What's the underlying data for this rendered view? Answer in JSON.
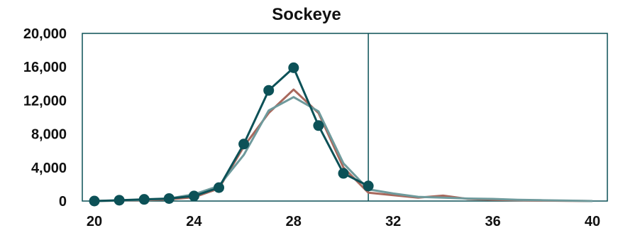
{
  "chart_data": {
    "type": "line",
    "title": "Sockeye",
    "xlabel": "",
    "ylabel": "",
    "xlim": [
      20,
      40
    ],
    "ylim": [
      0,
      20000
    ],
    "x_ticks": [
      "20",
      "24",
      "28",
      "32",
      "36",
      "40"
    ],
    "y_ticks": [
      "20,000",
      "16,000",
      "12,000",
      "8,000",
      "4,000",
      "0"
    ],
    "grid": false,
    "legend": "none",
    "vertical_marker_x": 31,
    "series": [
      {
        "color": "#a8685c",
        "markers": false,
        "points": [
          [
            20,
            0
          ],
          [
            21,
            50
          ],
          [
            22,
            100
          ],
          [
            23,
            200
          ],
          [
            24,
            450
          ],
          [
            25,
            1500
          ],
          [
            26,
            6500
          ],
          [
            27,
            10500
          ],
          [
            28,
            13300
          ],
          [
            29,
            10500
          ],
          [
            30,
            4000
          ],
          [
            31,
            1000
          ],
          [
            32,
            700
          ],
          [
            33,
            400
          ],
          [
            34,
            650
          ],
          [
            35,
            250
          ],
          [
            36,
            150
          ],
          [
            37,
            100
          ],
          [
            38,
            50
          ],
          [
            39,
            20
          ],
          [
            40,
            0
          ]
        ]
      },
      {
        "color": "#6e9a9c",
        "markers": false,
        "points": [
          [
            20,
            0
          ],
          [
            21,
            50
          ],
          [
            22,
            150
          ],
          [
            23,
            300
          ],
          [
            24,
            800
          ],
          [
            25,
            1800
          ],
          [
            26,
            5500
          ],
          [
            27,
            10800
          ],
          [
            28,
            12400
          ],
          [
            29,
            10700
          ],
          [
            30,
            4500
          ],
          [
            31,
            1400
          ],
          [
            32,
            900
          ],
          [
            33,
            500
          ],
          [
            34,
            400
          ],
          [
            35,
            300
          ],
          [
            36,
            250
          ],
          [
            37,
            150
          ],
          [
            38,
            100
          ],
          [
            39,
            50
          ],
          [
            40,
            0
          ]
        ]
      },
      {
        "color": "#0c5157",
        "markers": true,
        "points": [
          [
            20,
            0
          ],
          [
            21,
            100
          ],
          [
            22,
            200
          ],
          [
            23,
            300
          ],
          [
            24,
            600
          ],
          [
            25,
            1600
          ],
          [
            26,
            6800
          ],
          [
            27,
            13200
          ],
          [
            28,
            15900
          ],
          [
            29,
            9000
          ],
          [
            30,
            3300
          ],
          [
            31,
            1800
          ]
        ]
      }
    ]
  }
}
